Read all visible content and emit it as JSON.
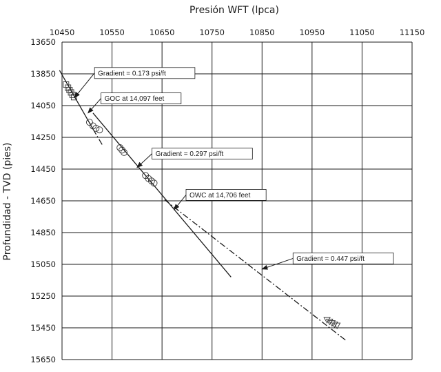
{
  "chart_data": {
    "type": "scatter",
    "title": "",
    "xlabel": "Presión WFT (lpca)",
    "ylabel": "Profundidad - TVD (pies)",
    "xlim": [
      10450,
      11150
    ],
    "ylim": [
      13650,
      15650
    ],
    "y_inverted": true,
    "x_axis_position": "top",
    "grid": true,
    "x_ticks": [
      10450,
      10550,
      10650,
      10750,
      10850,
      10950,
      11050,
      11150
    ],
    "y_ticks": [
      13650,
      13850,
      14050,
      14250,
      14450,
      14650,
      14850,
      15050,
      15250,
      15450,
      15650
    ],
    "series": [
      {
        "marker": "square",
        "points": [
          {
            "x": 10458,
            "y": 13917
          },
          {
            "x": 10462,
            "y": 13937
          },
          {
            "x": 10465,
            "y": 13952
          },
          {
            "x": 10468,
            "y": 13967
          },
          {
            "x": 10471,
            "y": 13982
          },
          {
            "x": 10474,
            "y": 13997
          }
        ]
      },
      {
        "marker": "circle",
        "points": [
          {
            "x": 10505,
            "y": 14155
          },
          {
            "x": 10512,
            "y": 14178
          },
          {
            "x": 10518,
            "y": 14193
          },
          {
            "x": 10525,
            "y": 14203
          },
          {
            "x": 10566,
            "y": 14315
          },
          {
            "x": 10570,
            "y": 14330
          },
          {
            "x": 10574,
            "y": 14345
          },
          {
            "x": 10617,
            "y": 14490
          },
          {
            "x": 10623,
            "y": 14510
          },
          {
            "x": 10629,
            "y": 14525
          },
          {
            "x": 10634,
            "y": 14538
          }
        ]
      },
      {
        "marker": "triangle",
        "points": [
          {
            "x": 10980,
            "y": 15400
          },
          {
            "x": 10985,
            "y": 15410
          },
          {
            "x": 10990,
            "y": 15420
          },
          {
            "x": 10995,
            "y": 15428
          },
          {
            "x": 11000,
            "y": 15435
          }
        ]
      }
    ],
    "lines": [
      {
        "style": "solid",
        "x": [
          10445,
          10512
        ],
        "y": [
          13828,
          14198
        ]
      },
      {
        "style": "dashdot",
        "x": [
          10512,
          10532
        ],
        "y": [
          14198,
          14305
        ]
      },
      {
        "style": "solid",
        "x": [
          10512,
          10788
        ],
        "y": [
          14097,
          15130
        ]
      },
      {
        "style": "dashdot",
        "x": [
          10655,
          11018
        ],
        "y": [
          14643,
          15530
        ]
      }
    ],
    "annotations": [
      {
        "text": "Gradient = 0.173 psi/ft",
        "box_x": 10515,
        "box_y": 13810,
        "target_x": 10475,
        "target_y": 14000
      },
      {
        "text": "GOC at 14,097 feet",
        "box_x": 10528,
        "box_y": 13970,
        "target_x": 10502,
        "target_y": 14097
      },
      {
        "text": "Gradient = 0.297 psi/ft",
        "box_x": 10630,
        "box_y": 14318,
        "target_x": 10600,
        "target_y": 14440
      },
      {
        "text": "OWC at 14,706 feet",
        "box_x": 10698,
        "box_y": 14578,
        "target_x": 10674,
        "target_y": 14706
      },
      {
        "text": "Gradient = 0.447 psi/ft",
        "box_x": 10912,
        "box_y": 14978,
        "target_x": 10850,
        "target_y": 15080
      }
    ]
  }
}
